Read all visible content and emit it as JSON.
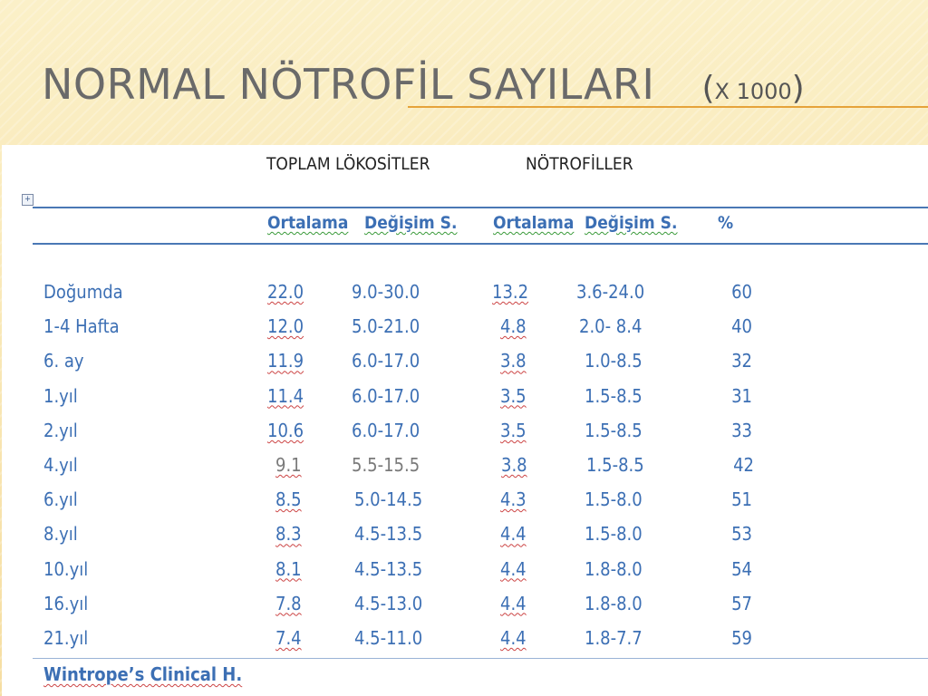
{
  "slide": {
    "title": "NORMAL NÖTROFİL SAYILARI",
    "title_unit_open": "(",
    "title_unit": "X 1000",
    "title_unit_close": ")"
  },
  "table": {
    "group_headers": [
      "TOPLAM LÖKOSİTLER",
      "NÖTROFİLLER"
    ],
    "column_headers": {
      "wbc_mean": "Ortalama",
      "wbc_range": "Değişim S.",
      "neut_mean": "Ortalama",
      "neut_range": "Değişim S.",
      "percent": "%"
    },
    "rows": [
      {
        "age": "Doğumda",
        "wbc_mean": "22.0",
        "wbc_range": "9.0-30.0",
        "neut_mean": "13.2",
        "neut_range": "3.6-24.0",
        "percent": "60"
      },
      {
        "age": "1-4 Hafta",
        "wbc_mean": "12.0",
        "wbc_range": "5.0-21.0",
        "neut_mean": "4.8",
        "neut_range": "2.0- 8.4",
        "percent": "40"
      },
      {
        "age": "6. ay",
        "wbc_mean": "11.9",
        "wbc_range": "6.0-17.0",
        "neut_mean": "3.8",
        "neut_range": "1.0-8.5",
        "percent": "32"
      },
      {
        "age": "1.yıl",
        "wbc_mean": "11.4",
        "wbc_range": "6.0-17.0",
        "neut_mean": "3.5",
        "neut_range": "1.5-8.5",
        "percent": "31"
      },
      {
        "age": "2.yıl",
        "wbc_mean": "10.6",
        "wbc_range": "6.0-17.0",
        "neut_mean": "3.5",
        "neut_range": "1.5-8.5",
        "percent": "33"
      },
      {
        "age": "4.yıl",
        "wbc_mean": "9.1",
        "wbc_range": "5.5-15.5",
        "neut_mean": "3.8",
        "neut_range": "1.5-8.5",
        "percent": "42"
      },
      {
        "age": "6.yıl",
        "wbc_mean": "8.5",
        "wbc_range": "5.0-14.5",
        "neut_mean": "4.3",
        "neut_range": "1.5-8.0",
        "percent": "51"
      },
      {
        "age": "8.yıl",
        "wbc_mean": "8.3",
        "wbc_range": "4.5-13.5",
        "neut_mean": "4.4",
        "neut_range": "1.5-8.0",
        "percent": "53"
      },
      {
        "age": "10.yıl",
        "wbc_mean": "8.1",
        "wbc_range": "4.5-13.5",
        "neut_mean": "4.4",
        "neut_range": "1.8-8.0",
        "percent": "54"
      },
      {
        "age": "16.yıl",
        "wbc_mean": "7.8",
        "wbc_range": "4.5-13.0",
        "neut_mean": "4.4",
        "neut_range": "1.8-8.0",
        "percent": "57"
      },
      {
        "age": "21.yıl",
        "wbc_mean": "7.4",
        "wbc_range": "4.5-11.0",
        "neut_mean": "4.4",
        "neut_range": "1.8-7.7",
        "percent": "59"
      }
    ],
    "source": "Wintrope’s Clinical H."
  },
  "colors": {
    "background": "#f8e6ae",
    "accent_rule": "#e6a33a",
    "table_text": "#3c6fb4",
    "title_text": "#6a6a6a"
  },
  "icons": {
    "table_move_handle": "move-handle-icon"
  }
}
